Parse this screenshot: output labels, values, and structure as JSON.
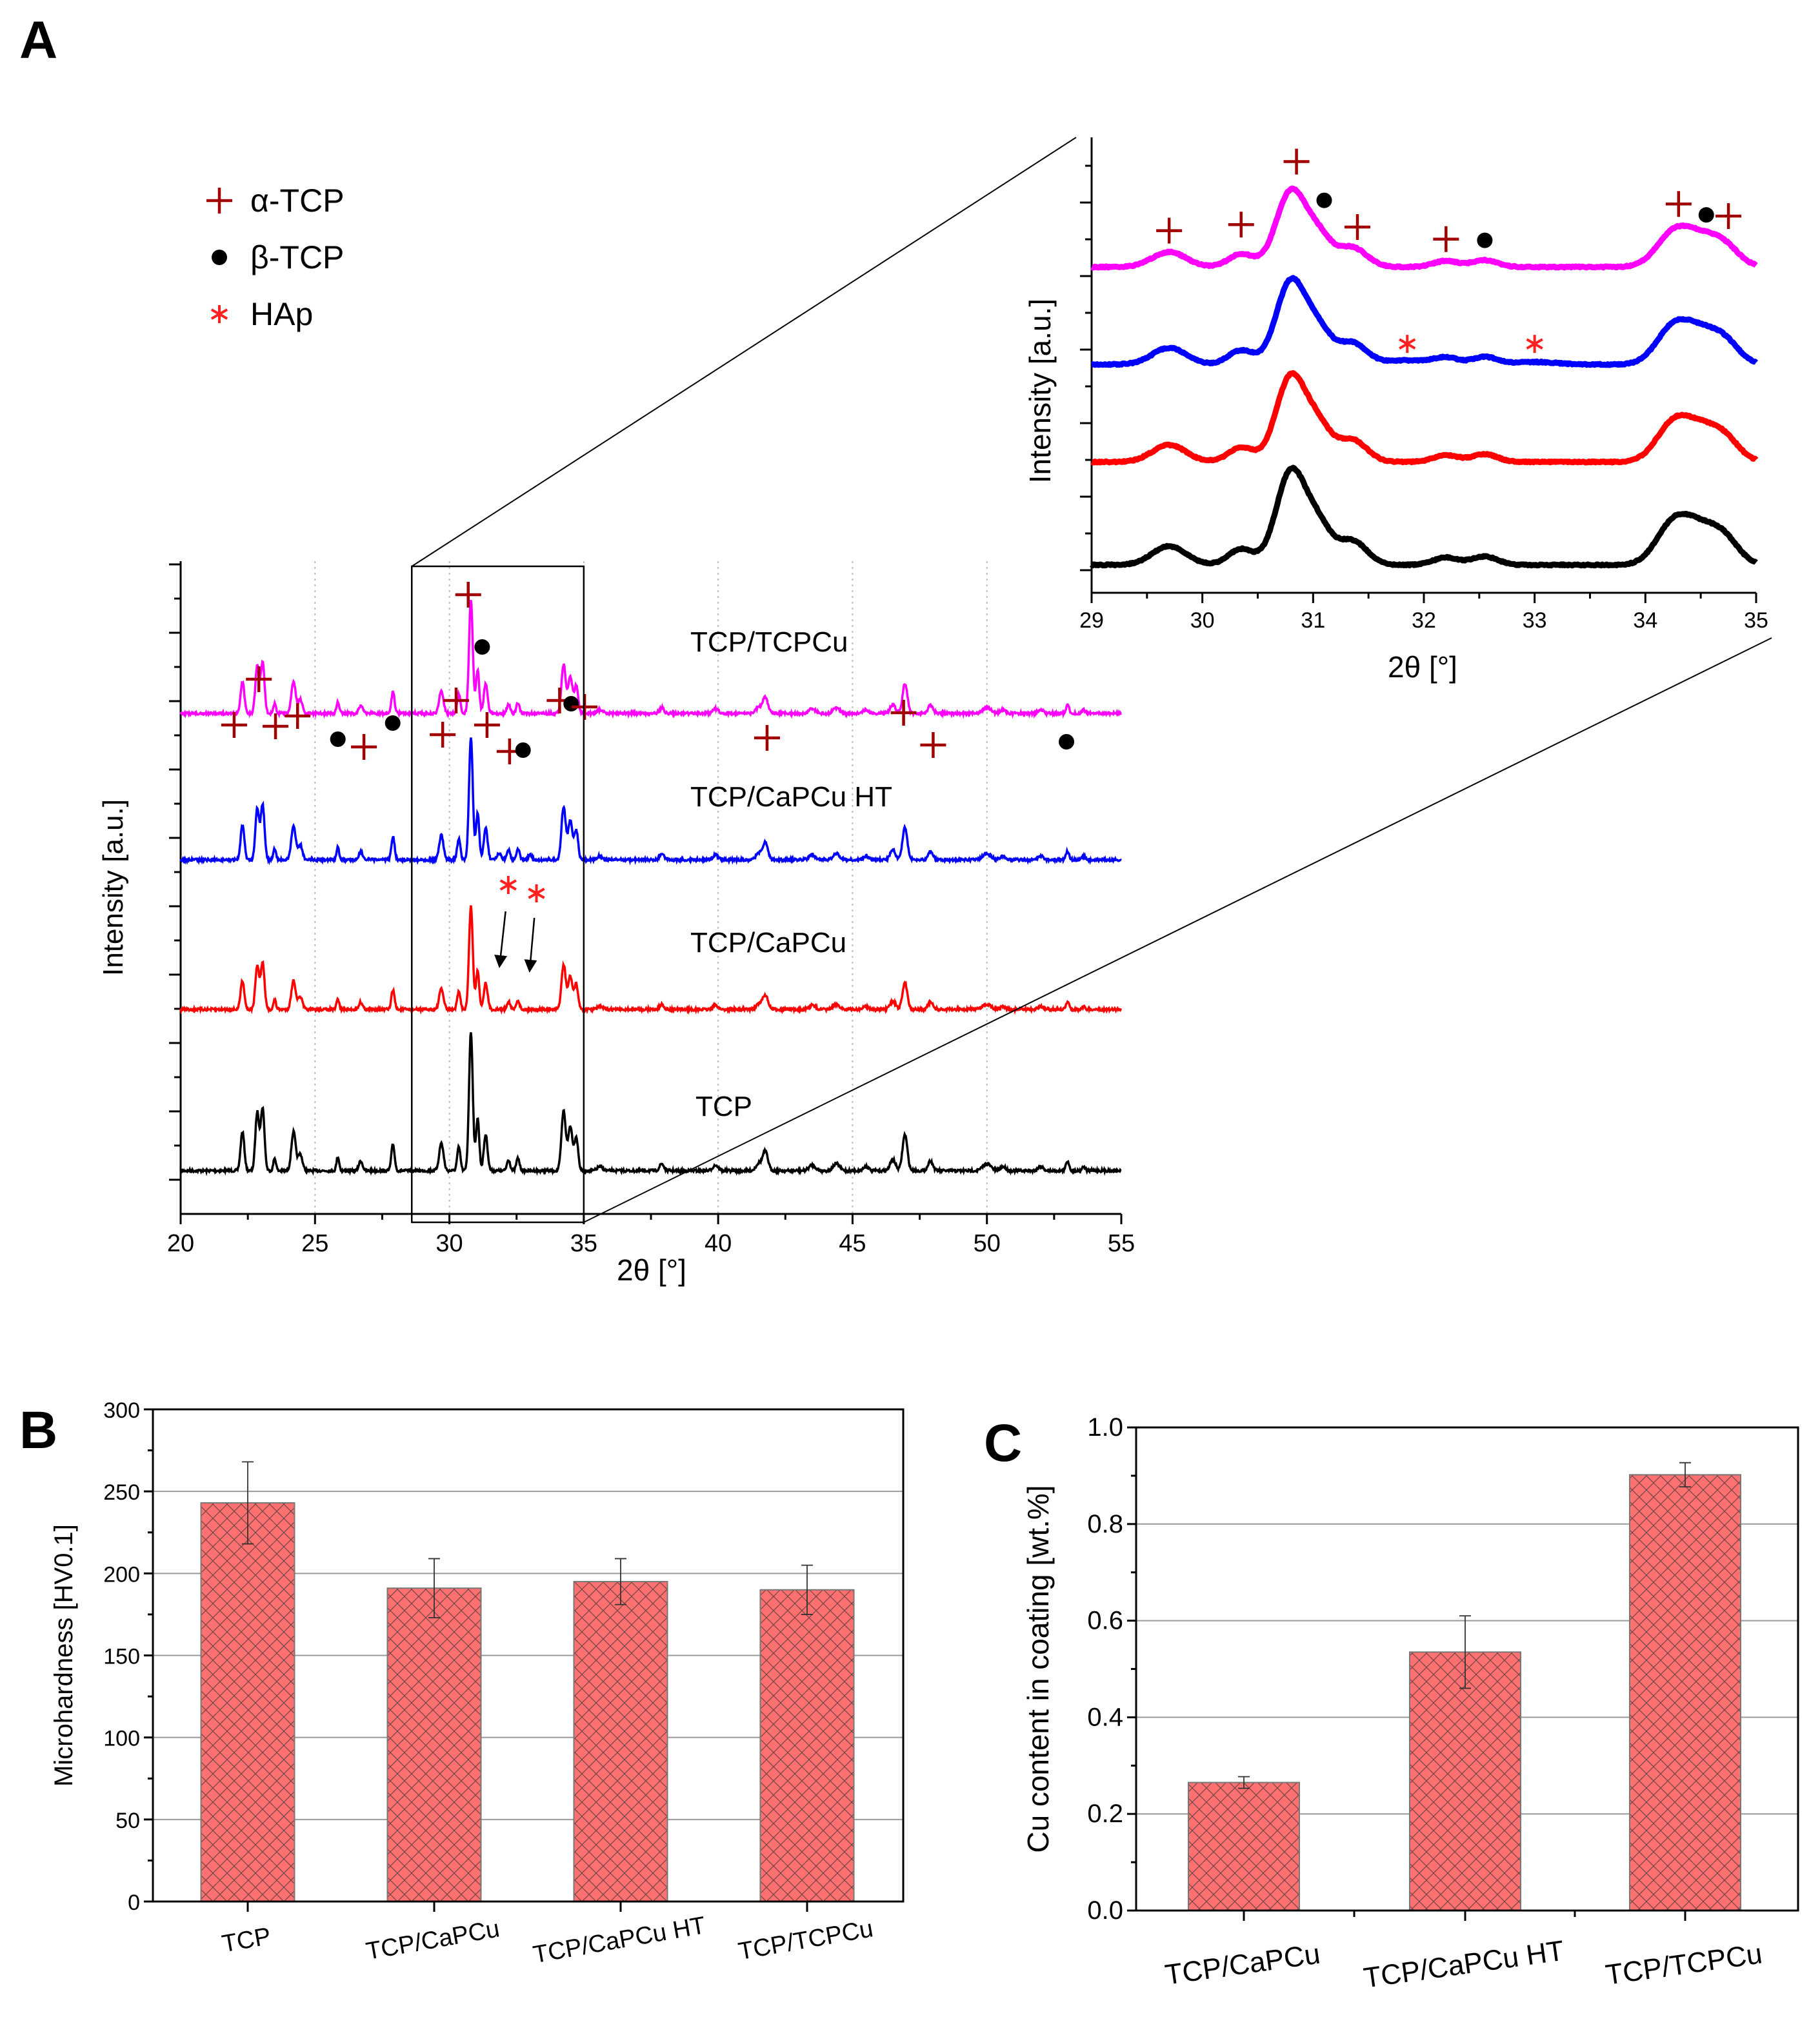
{
  "panel_labels": {
    "a": "A",
    "b": "B",
    "c": "C"
  },
  "chart_data": [
    {
      "panel": "A",
      "type": "line",
      "xlabel": "2θ  [°]",
      "ylabel": "Intensity [a.u.]",
      "xlim": [
        20,
        55
      ],
      "ylim": [
        -67,
        945
      ],
      "x_ticks": [
        20,
        25,
        30,
        35,
        40,
        45,
        50,
        55
      ],
      "grid": "vertical dotted at major x ticks",
      "zoom_region": [
        28.6,
        35
      ],
      "legend": [
        {
          "symbol": "plus",
          "label": "α-TCP",
          "color": "#A00000"
        },
        {
          "symbol": "dot",
          "label": "β-TCP",
          "color": "#000000"
        },
        {
          "symbol": "star",
          "label": "HAp",
          "color": "#FF2020"
        }
      ],
      "series": [
        {
          "name": "TCP",
          "color": "#000000",
          "offset": 0,
          "scale": 215
        },
        {
          "name": "TCP/CaPCu",
          "color": "#FF0000",
          "offset": 250,
          "scale": 160
        },
        {
          "name": "TCP/CaPCu HT",
          "color": "#0000FF",
          "offset": 482,
          "scale": 190,
          "extra_peaks": [
            [
              31.85,
              0.05,
              0.07
            ],
            [
              33.0,
              0.04,
              0.07
            ]
          ]
        },
        {
          "name": "TCP/TCPCu",
          "color": "#FF00FF",
          "offset": 709,
          "scale": 176
        }
      ],
      "peaks_2theta_relheight_width": [
        [
          22.3,
          0.28,
          0.07
        ],
        [
          22.85,
          0.42,
          0.07
        ],
        [
          23.05,
          0.45,
          0.07
        ],
        [
          23.5,
          0.09,
          0.05
        ],
        [
          24.2,
          0.28,
          0.08
        ],
        [
          24.45,
          0.12,
          0.08
        ],
        [
          25.85,
          0.1,
          0.05
        ],
        [
          26.7,
          0.07,
          0.07
        ],
        [
          27.9,
          0.19,
          0.06
        ],
        [
          29.7,
          0.2,
          0.08
        ],
        [
          30.35,
          0.17,
          0.06
        ],
        [
          30.8,
          1.0,
          0.07
        ],
        [
          31.05,
          0.38,
          0.06
        ],
        [
          31.35,
          0.26,
          0.07
        ],
        [
          32.2,
          0.08,
          0.06
        ],
        [
          32.55,
          0.09,
          0.06
        ],
        [
          34.25,
          0.43,
          0.08
        ],
        [
          34.5,
          0.32,
          0.08
        ],
        [
          34.72,
          0.24,
          0.07
        ],
        [
          35.6,
          0.03,
          0.1
        ],
        [
          37.9,
          0.05,
          0.08
        ],
        [
          39.9,
          0.04,
          0.1
        ],
        [
          41.5,
          0.05,
          0.1
        ],
        [
          41.75,
          0.14,
          0.1
        ],
        [
          43.5,
          0.04,
          0.12
        ],
        [
          44.4,
          0.05,
          0.12
        ],
        [
          45.5,
          0.03,
          0.1
        ],
        [
          46.5,
          0.08,
          0.1
        ],
        [
          46.95,
          0.26,
          0.09
        ],
        [
          47.9,
          0.07,
          0.09
        ],
        [
          50.0,
          0.05,
          0.15
        ],
        [
          50.6,
          0.03,
          0.1
        ],
        [
          52.0,
          0.03,
          0.1
        ],
        [
          53.0,
          0.07,
          0.06
        ],
        [
          53.6,
          0.03,
          0.06
        ]
      ],
      "markers": [
        {
          "type": "plus",
          "x": 21.99,
          "y": 691
        },
        {
          "type": "plus",
          "x": 22.91,
          "y": 762
        },
        {
          "type": "plus",
          "x": 23.53,
          "y": 689
        },
        {
          "type": "plus",
          "x": 24.35,
          "y": 705
        },
        {
          "type": "dot",
          "x": 25.85,
          "y": 669
        },
        {
          "type": "plus",
          "x": 26.82,
          "y": 657
        },
        {
          "type": "dot",
          "x": 27.89,
          "y": 694
        },
        {
          "type": "plus",
          "x": 29.75,
          "y": 676
        },
        {
          "type": "plus",
          "x": 30.25,
          "y": 729
        },
        {
          "type": "plus",
          "x": 30.7,
          "y": 893
        },
        {
          "type": "dot",
          "x": 31.22,
          "y": 812
        },
        {
          "type": "plus",
          "x": 31.4,
          "y": 691
        },
        {
          "type": "plus",
          "x": 32.24,
          "y": 650
        },
        {
          "type": "dot",
          "x": 32.74,
          "y": 652
        },
        {
          "type": "plus",
          "x": 34.1,
          "y": 729
        },
        {
          "type": "dot",
          "x": 34.53,
          "y": 724
        },
        {
          "type": "plus",
          "x": 35.03,
          "y": 719
        },
        {
          "type": "plus",
          "x": 41.82,
          "y": 671
        },
        {
          "type": "plus",
          "x": 46.9,
          "y": 710
        },
        {
          "type": "plus",
          "x": 48.0,
          "y": 660
        },
        {
          "type": "dot",
          "x": 52.96,
          "y": 665
        },
        {
          "type": "star",
          "x": 32.19,
          "y": 443
        },
        {
          "type": "star",
          "x": 33.24,
          "y": 430
        }
      ],
      "arrows": [
        {
          "from": [
            32.09,
            402
          ],
          "to": [
            31.87,
            319
          ]
        },
        {
          "from": [
            33.16,
            392
          ],
          "to": [
            32.99,
            312
          ]
        }
      ]
    },
    {
      "panel": "A-inset",
      "type": "line",
      "xlabel": "2θ [°]",
      "ylabel": "Intensity [a.u.]",
      "xlim": [
        29,
        35
      ],
      "ylim": [
        -46,
        706
      ],
      "x_ticks": [
        29,
        30,
        31,
        32,
        33,
        34,
        35
      ],
      "series": [
        {
          "name": "TCP",
          "color": "#000000",
          "offset": 0,
          "scale": 154
        },
        {
          "name": "TCP/CaPCu",
          "color": "#FF0000",
          "offset": 170,
          "scale": 141
        },
        {
          "name": "TCP/CaPCu HT",
          "color": "#0000FF",
          "offset": 331,
          "scale": 137,
          "extra_peaks": [
            [
              31.85,
              0.05,
              0.1
            ],
            [
              33.0,
              0.03,
              0.1
            ]
          ]
        },
        {
          "name": "TCP/TCPCu",
          "color": "#FF00FF",
          "offset": 492,
          "scale": 124
        }
      ],
      "markers": [
        {
          "type": "plus",
          "x": 29.7,
          "y": 552
        },
        {
          "type": "plus",
          "x": 30.35,
          "y": 562
        },
        {
          "type": "plus",
          "x": 30.85,
          "y": 666
        },
        {
          "type": "dot",
          "x": 31.1,
          "y": 602
        },
        {
          "type": "plus",
          "x": 31.4,
          "y": 558
        },
        {
          "type": "plus",
          "x": 32.2,
          "y": 538
        },
        {
          "type": "dot",
          "x": 32.55,
          "y": 536
        },
        {
          "type": "plus",
          "x": 34.3,
          "y": 596
        },
        {
          "type": "dot",
          "x": 34.55,
          "y": 578
        },
        {
          "type": "plus",
          "x": 34.75,
          "y": 576
        },
        {
          "type": "star",
          "x": 31.85,
          "y": 365
        },
        {
          "type": "star",
          "x": 33.0,
          "y": 365
        }
      ]
    },
    {
      "panel": "B",
      "type": "bar",
      "ylabel": "Microhardness [HV0.1]",
      "xlabel": "",
      "ylim": [
        0,
        300
      ],
      "y_ticks": [
        0,
        50,
        100,
        150,
        200,
        250,
        300
      ],
      "categories": [
        "TCP",
        "TCP/CaPCu",
        "TCP/CaPCu HT",
        "TCP/TCPCu"
      ],
      "values": [
        243,
        191,
        195,
        190
      ],
      "errors": [
        25,
        18,
        14,
        15
      ],
      "bar_color": "#FF7070",
      "grid": "horizontal"
    },
    {
      "panel": "C",
      "type": "bar",
      "ylabel": "Cu content in coating [wt.%]",
      "xlabel": "",
      "ylim": [
        0,
        1.0
      ],
      "y_ticks": [
        "0.0",
        "0.2",
        "0.4",
        "0.6",
        "0.8",
        "1.0"
      ],
      "categories": [
        "TCP/CaPCu",
        "TCP/CaPCu HT",
        "TCP/TCPCu"
      ],
      "values": [
        0.265,
        0.535,
        0.902
      ],
      "errors": [
        0.012,
        0.075,
        0.025
      ],
      "bar_color": "#FF7070",
      "grid": "horizontal"
    }
  ]
}
